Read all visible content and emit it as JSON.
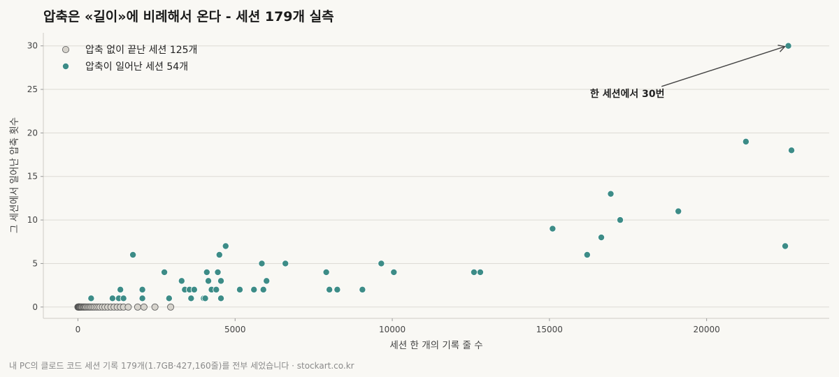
{
  "chart_data": {
    "type": "scatter",
    "title": "압축은 «길이»에 비례해서 온다 - 세션 179개 실측",
    "xlabel": "세션 한 개의 기록 줄 수",
    "ylabel": "그 세션에서 일어난 압축 횟수",
    "xlim": [
      -1100,
      23900
    ],
    "ylim": [
      -1.3,
      31.5
    ],
    "x_ticks": [
      0,
      5000,
      10000,
      15000,
      20000
    ],
    "x_tick_labels": [
      "0",
      "5000",
      "10000",
      "15000",
      "20000"
    ],
    "y_ticks": [
      0,
      5,
      10,
      15,
      20,
      25,
      30
    ],
    "y_tick_labels": [
      "0",
      "5",
      "10",
      "15",
      "20",
      "25",
      "30"
    ],
    "grid": "horizontal",
    "legend_position": "top-left",
    "series": [
      {
        "name": "압축 없이 끝난 세션 125개",
        "color": "#d6d3cc",
        "edge": "#555555",
        "points": [
          [
            0,
            0
          ],
          [
            10,
            0
          ],
          [
            20,
            0
          ],
          [
            30,
            0
          ],
          [
            40,
            0
          ],
          [
            50,
            0
          ],
          [
            60,
            0
          ],
          [
            80,
            0
          ],
          [
            100,
            0
          ],
          [
            120,
            0
          ],
          [
            150,
            0
          ],
          [
            180,
            0
          ],
          [
            200,
            0
          ],
          [
            230,
            0
          ],
          [
            260,
            0
          ],
          [
            300,
            0
          ],
          [
            340,
            0
          ],
          [
            380,
            0
          ],
          [
            420,
            0
          ],
          [
            470,
            0
          ],
          [
            520,
            0
          ],
          [
            580,
            0
          ],
          [
            640,
            0
          ],
          [
            700,
            0
          ],
          [
            780,
            0
          ],
          [
            860,
            0
          ],
          [
            950,
            0
          ],
          [
            1050,
            0
          ],
          [
            1150,
            0
          ],
          [
            1250,
            0
          ],
          [
            1350,
            0
          ],
          [
            1450,
            0
          ],
          [
            1600,
            0
          ],
          [
            1900,
            0
          ],
          [
            2100,
            0
          ],
          [
            2450,
            0
          ],
          [
            2950,
            0
          ]
        ]
      },
      {
        "name": "압축이 일어난 세션 54개",
        "color": "#3d8c87",
        "edge": "#ffffff",
        "points": [
          [
            420,
            1
          ],
          [
            1100,
            1
          ],
          [
            1300,
            1
          ],
          [
            1450,
            1
          ],
          [
            1350,
            2
          ],
          [
            1750,
            6
          ],
          [
            2050,
            1
          ],
          [
            2050,
            2
          ],
          [
            2750,
            4
          ],
          [
            2900,
            1
          ],
          [
            3300,
            3
          ],
          [
            3400,
            2
          ],
          [
            3550,
            2
          ],
          [
            3600,
            1
          ],
          [
            3700,
            2
          ],
          [
            4000,
            1
          ],
          [
            4050,
            1
          ],
          [
            4100,
            4
          ],
          [
            4150,
            3
          ],
          [
            4250,
            2
          ],
          [
            4400,
            2
          ],
          [
            4450,
            4
          ],
          [
            4500,
            6
          ],
          [
            4550,
            3
          ],
          [
            4550,
            1
          ],
          [
            4700,
            7
          ],
          [
            5150,
            2
          ],
          [
            5600,
            2
          ],
          [
            5850,
            5
          ],
          [
            5900,
            2
          ],
          [
            6000,
            3
          ],
          [
            6600,
            5
          ],
          [
            7900,
            4
          ],
          [
            8000,
            2
          ],
          [
            8250,
            2
          ],
          [
            9050,
            2
          ],
          [
            9650,
            5
          ],
          [
            10050,
            4
          ],
          [
            12600,
            4
          ],
          [
            12800,
            4
          ],
          [
            15100,
            9
          ],
          [
            16200,
            6
          ],
          [
            16650,
            8
          ],
          [
            16950,
            13
          ],
          [
            17250,
            10
          ],
          [
            19100,
            11
          ],
          [
            21250,
            19
          ],
          [
            22500,
            7
          ],
          [
            22600,
            30
          ],
          [
            22700,
            18
          ]
        ]
      }
    ],
    "annotation": {
      "text": "한 세션에서 30번",
      "target": [
        22600,
        30
      ],
      "text_at": [
        17500,
        25.5
      ]
    }
  },
  "footer": "내 PC의 클로드 코드 세션 기록 179개(1.7GB·427,160줄)를 전부 세었습니다 · stockart.co.kr"
}
